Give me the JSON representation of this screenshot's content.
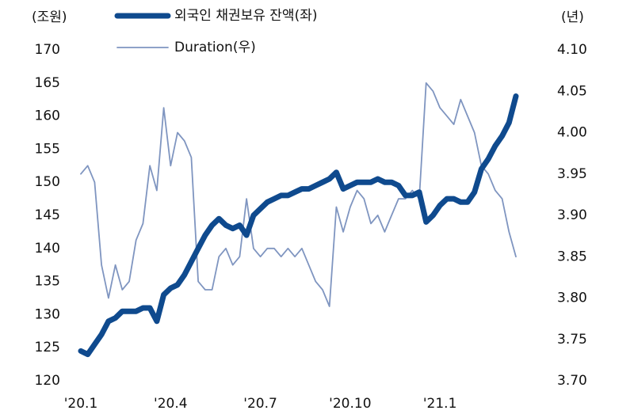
{
  "chart_data": {
    "type": "line",
    "y_label": "(조원)",
    "y2_label": "(년)",
    "categories": [
      "'20.1",
      null,
      null,
      null,
      null,
      null,
      null,
      null,
      null,
      null,
      null,
      null,
      null,
      "'20.4",
      null,
      null,
      null,
      null,
      null,
      null,
      null,
      null,
      null,
      null,
      null,
      null,
      "'20.7",
      null,
      null,
      null,
      null,
      null,
      null,
      null,
      null,
      null,
      null,
      null,
      null,
      "'20.10",
      null,
      null,
      null,
      null,
      null,
      null,
      null,
      null,
      null,
      null,
      null,
      null,
      "'21.1",
      null,
      null,
      null,
      null,
      null,
      null,
      null,
      null,
      null,
      null,
      null
    ],
    "series": [
      {
        "name": "외국인 채권보유 잔액(좌)",
        "color": "#0f4a8e",
        "axis": "y",
        "width": 7,
        "values": [
          124.5,
          124,
          125.5,
          127,
          129,
          129.5,
          130.5,
          130.5,
          130.5,
          131,
          131,
          129,
          133,
          134,
          134.5,
          136,
          138,
          140,
          142,
          143.5,
          144.5,
          143.5,
          143,
          143.5,
          142,
          145,
          146,
          147,
          147.5,
          148,
          148,
          148.5,
          149,
          149,
          149.5,
          150,
          150.5,
          151.5,
          149,
          149.5,
          150,
          150,
          150,
          150.5,
          150,
          150,
          149.5,
          148,
          148,
          148.5,
          144,
          145,
          146.5,
          147.5,
          147.5,
          147,
          147,
          148.5,
          152,
          153.5,
          155.5,
          157,
          159,
          163
        ]
      },
      {
        "name": "Duration(우)",
        "color": "#7f95c0",
        "axis": "y2",
        "width": 1.8,
        "values": [
          3.95,
          3.96,
          3.94,
          3.84,
          3.8,
          3.84,
          3.81,
          3.82,
          3.87,
          3.89,
          3.96,
          3.93,
          4.03,
          3.96,
          4.0,
          3.99,
          3.97,
          3.82,
          3.81,
          3.81,
          3.85,
          3.86,
          3.84,
          3.85,
          3.92,
          3.86,
          3.85,
          3.86,
          3.86,
          3.85,
          3.86,
          3.85,
          3.86,
          3.84,
          3.82,
          3.81,
          3.79,
          3.91,
          3.88,
          3.91,
          3.93,
          3.92,
          3.89,
          3.9,
          3.88,
          3.9,
          3.92,
          3.92,
          3.93,
          3.92,
          4.06,
          4.05,
          4.03,
          4.02,
          4.01,
          4.04,
          4.02,
          4.0,
          3.96,
          3.95,
          3.93,
          3.92,
          3.88,
          3.85
        ]
      }
    ],
    "ylim": [
      120,
      170
    ],
    "yticks": [
      120,
      125,
      130,
      135,
      140,
      145,
      150,
      155,
      160,
      165,
      170
    ],
    "y2lim": [
      3.7,
      4.1
    ],
    "y2ticks": [
      {
        "value": 3.7,
        "label": "3.70"
      },
      3.75,
      {
        "value": 3.8,
        "label": "3.80"
      },
      3.85,
      {
        "value": 3.9,
        "label": "3.90"
      },
      3.95,
      {
        "value": 4.0,
        "label": "4.00"
      },
      4.05,
      {
        "value": 4.1,
        "label": "4.10"
      }
    ],
    "grid": false
  }
}
